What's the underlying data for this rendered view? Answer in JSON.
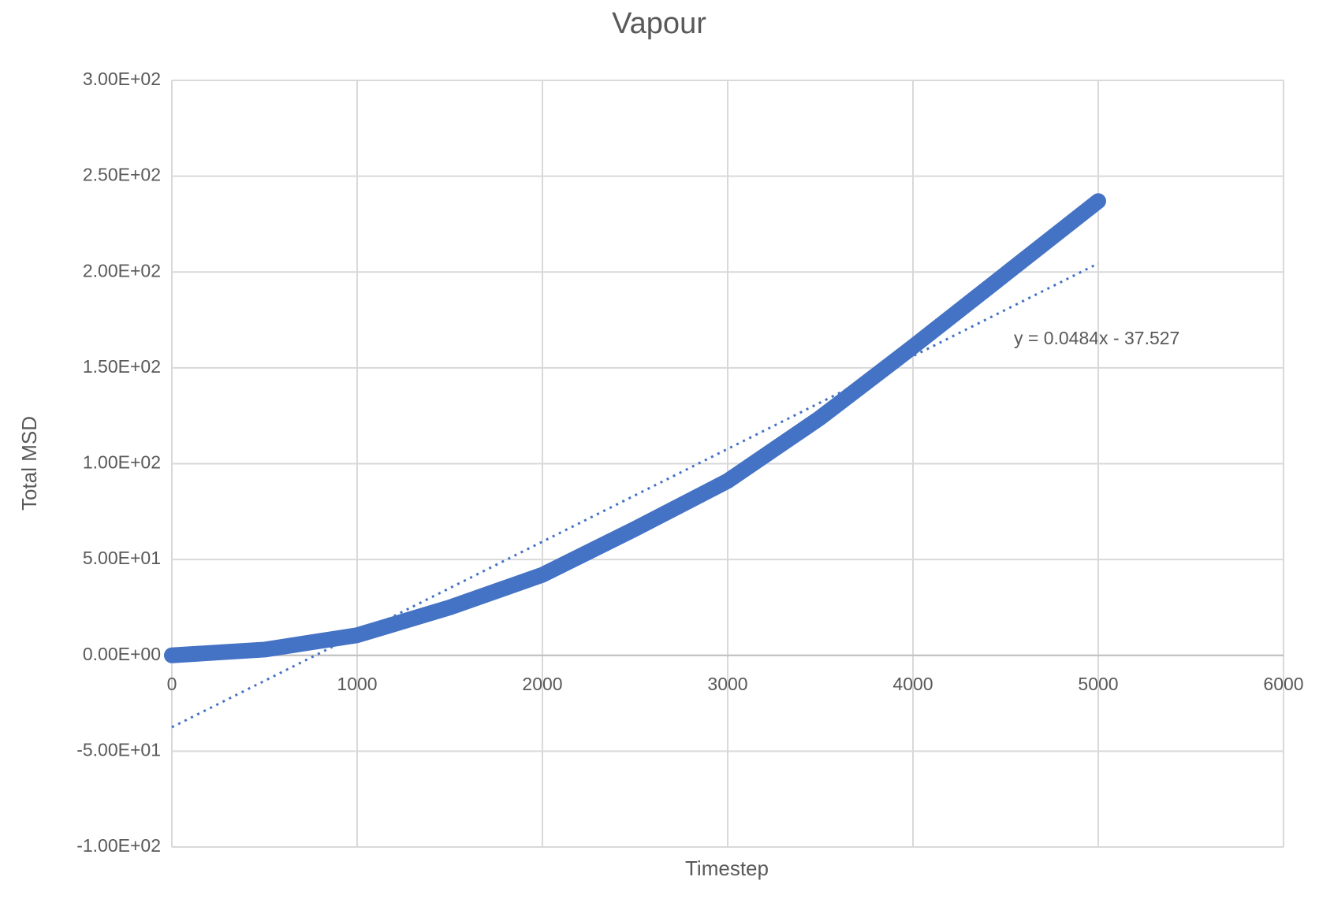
{
  "chart_data": {
    "type": "scatter",
    "title": "Vapour",
    "x_label": "Timestep",
    "y_label": "Total MSD",
    "xlim": [
      0,
      6000
    ],
    "xticks": [
      0,
      1000,
      2000,
      3000,
      4000,
      5000,
      6000
    ],
    "ylim": [
      -100,
      300
    ],
    "yticks": [
      {
        "value": -100,
        "label": "-1.00E+02"
      },
      {
        "value": -50,
        "label": "-5.00E+01"
      },
      {
        "value": 0,
        "label": "0.00E+00"
      },
      {
        "value": 50,
        "label": "5.00E+01"
      },
      {
        "value": 100,
        "label": "1.00E+02"
      },
      {
        "value": 150,
        "label": "1.50E+02"
      },
      {
        "value": 200,
        "label": "2.00E+02"
      },
      {
        "value": 250,
        "label": "2.50E+02"
      },
      {
        "value": 300,
        "label": "3.00E+02"
      }
    ],
    "grid": true,
    "series": [
      {
        "color": "#4472c4",
        "style": "solid",
        "x": [
          0,
          500,
          1000,
          1500,
          2000,
          2500,
          3000,
          3500,
          4000,
          4500,
          5000
        ],
        "values": [
          0,
          3,
          10.5,
          25,
          42,
          66,
          91,
          124,
          161,
          199,
          237
        ]
      },
      {
        "color": "#4472c4",
        "style": "dotted",
        "x": [
          0,
          5000
        ],
        "values": [
          -37.5,
          204.5
        ]
      }
    ],
    "annotation": "y = 0.0484x - 37.527"
  }
}
